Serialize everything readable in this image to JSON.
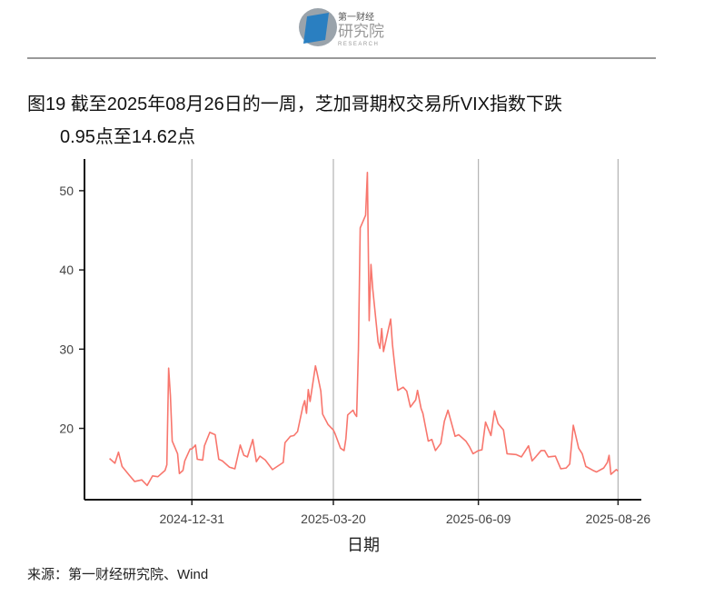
{
  "header": {
    "logo_top": "第一财经",
    "logo_main": "研究院",
    "logo_sub": "RESEARCH"
  },
  "chart_data": {
    "type": "line",
    "title": [
      "图19  截至2025年08月26日的一周，芝加哥期权交易所VIX指数下跌",
      "0.95点至14.62点"
    ],
    "x_label": "日期",
    "source": "来源：第一财经研究院、Wind",
    "xlim": [
      "2024-11-01",
      "2025-09-08"
    ],
    "xticks": [
      "2024-12-31",
      "2025-03-20",
      "2025-06-09",
      "2025-08-26"
    ],
    "ylim": [
      11,
      54
    ],
    "yticks": [
      20,
      30,
      40,
      50
    ],
    "grid": "x",
    "x": [
      "2024-11-15",
      "2024-11-18",
      "2024-11-20",
      "2024-11-22",
      "2024-11-26",
      "2024-11-29",
      "2024-12-03",
      "2024-12-06",
      "2024-12-09",
      "2024-12-12",
      "2024-12-16",
      "2024-12-17",
      "2024-12-18",
      "2024-12-19",
      "2024-12-20",
      "2024-12-23",
      "2024-12-24",
      "2024-12-26",
      "2024-12-27",
      "2024-12-30",
      "2024-12-31",
      "2025-01-02",
      "2025-01-03",
      "2025-01-06",
      "2025-01-07",
      "2025-01-10",
      "2025-01-13",
      "2025-01-15",
      "2025-01-17",
      "2025-01-21",
      "2025-01-24",
      "2025-01-27",
      "2025-01-29",
      "2025-01-31",
      "2025-02-03",
      "2025-02-05",
      "2025-02-07",
      "2025-02-10",
      "2025-02-13",
      "2025-02-14",
      "2025-02-18",
      "2025-02-20",
      "2025-02-21",
      "2025-02-24",
      "2025-02-26",
      "2025-02-28",
      "2025-03-03",
      "2025-03-04",
      "2025-03-05",
      "2025-03-06",
      "2025-03-07",
      "2025-03-10",
      "2025-03-11",
      "2025-03-13",
      "2025-03-14",
      "2025-03-17",
      "2025-03-20",
      "2025-03-21",
      "2025-03-24",
      "2025-03-26",
      "2025-03-27",
      "2025-03-28",
      "2025-03-31",
      "2025-04-01",
      "2025-04-02",
      "2025-04-03",
      "2025-04-04",
      "2025-04-07",
      "2025-04-08",
      "2025-04-09",
      "2025-04-10",
      "2025-04-11",
      "2025-04-14",
      "2025-04-15",
      "2025-04-16",
      "2025-04-17",
      "2025-04-21",
      "2025-04-22",
      "2025-04-23",
      "2025-04-24",
      "2025-04-25",
      "2025-04-28",
      "2025-04-30",
      "2025-05-02",
      "2025-05-05",
      "2025-05-06",
      "2025-05-08",
      "2025-05-09",
      "2025-05-12",
      "2025-05-14",
      "2025-05-16",
      "2025-05-19",
      "2025-05-21",
      "2025-05-23",
      "2025-05-27",
      "2025-05-29",
      "2025-06-02",
      "2025-06-04",
      "2025-06-06",
      "2025-06-09",
      "2025-06-11",
      "2025-06-13",
      "2025-06-16",
      "2025-06-18",
      "2025-06-20",
      "2025-06-23",
      "2025-06-25",
      "2025-06-30",
      "2025-07-03",
      "2025-07-07",
      "2025-07-09",
      "2025-07-11",
      "2025-07-14",
      "2025-07-16",
      "2025-07-18",
      "2025-07-22",
      "2025-07-25",
      "2025-07-28",
      "2025-07-30",
      "2025-08-01",
      "2025-08-04",
      "2025-08-06",
      "2025-08-08",
      "2025-08-12",
      "2025-08-14",
      "2025-08-18",
      "2025-08-20",
      "2025-08-21",
      "2025-08-22",
      "2025-08-25",
      "2025-08-26"
    ],
    "series": [
      {
        "color": "#f8766d",
        "values": [
          16.2,
          15.6,
          17.0,
          15.2,
          14.1,
          13.3,
          13.5,
          12.8,
          14.0,
          13.9,
          14.7,
          15.4,
          27.6,
          24.1,
          18.4,
          16.8,
          14.3,
          14.7,
          15.9,
          17.4,
          17.4,
          17.9,
          16.1,
          16.0,
          17.8,
          19.5,
          19.2,
          16.1,
          15.9,
          15.1,
          14.9,
          17.9,
          16.6,
          16.4,
          18.6,
          15.8,
          16.5,
          16.0,
          15.1,
          14.8,
          15.4,
          15.7,
          18.2,
          19.0,
          19.1,
          19.6,
          22.8,
          23.5,
          21.9,
          24.9,
          23.4,
          27.9,
          26.9,
          24.7,
          21.8,
          20.5,
          19.8,
          19.3,
          17.5,
          17.2,
          18.7,
          21.7,
          22.3,
          21.8,
          21.5,
          30.0,
          45.3,
          46.9,
          52.3,
          33.6,
          40.7,
          37.6,
          30.9,
          30.1,
          32.6,
          29.7,
          33.8,
          30.6,
          28.5,
          26.5,
          24.8,
          25.2,
          24.7,
          22.7,
          23.6,
          24.8,
          22.5,
          21.9,
          18.4,
          18.6,
          17.2,
          18.1,
          20.9,
          22.3,
          19.0,
          19.2,
          18.4,
          17.7,
          16.8,
          17.2,
          17.3,
          20.8,
          19.1,
          22.2,
          20.6,
          19.8,
          16.8,
          16.7,
          16.4,
          17.8,
          15.9,
          16.4,
          17.2,
          17.2,
          16.4,
          16.5,
          14.9,
          15.0,
          15.5,
          20.4,
          17.5,
          16.8,
          15.2,
          14.7,
          14.5,
          15.0,
          15.7,
          16.6,
          14.2,
          14.8,
          14.62
        ]
      }
    ]
  }
}
